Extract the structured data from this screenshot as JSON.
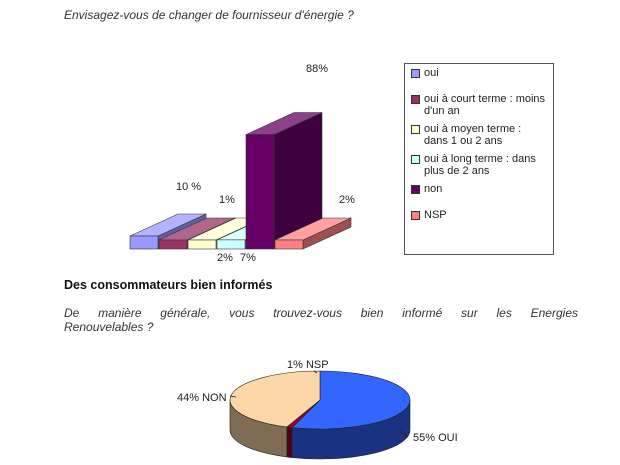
{
  "question1": "Envisagez-vous de changer de fournisseur d'énergie ?",
  "section_title": "Des consommateurs bien informés",
  "question2_line1": "De manière générale, vous trouvez-vous bien informé sur les Energies",
  "question2_line2": "Renouvelables ?",
  "chart_data": [
    {
      "type": "bar",
      "title": "",
      "categories": [
        "oui",
        "oui à court terme : moins d'un an",
        "oui à moyen terme : dans 1 ou 2 ans",
        "oui à long terme : dans plus de 2 ans",
        "non",
        "NSP"
      ],
      "values": [
        10,
        1,
        2,
        7,
        88,
        2
      ],
      "value_labels": [
        "10 %",
        "1%",
        "2%",
        "7%",
        "88%",
        "2%"
      ],
      "colors": [
        "#9999ff",
        "#993366",
        "#ffffcc",
        "#ccffff",
        "#660066",
        "#ff8080"
      ],
      "legend": [
        {
          "label": "oui",
          "color": "#9999ff"
        },
        {
          "label": "oui à court terme : moins d'un an",
          "color": "#993366"
        },
        {
          "label": "oui à moyen terme : dans 1 ou 2 ans",
          "color": "#ffffcc"
        },
        {
          "label": "oui à long terme : dans plus de 2 ans",
          "color": "#ccffff"
        },
        {
          "label": "non",
          "color": "#660066"
        },
        {
          "label": "NSP",
          "color": "#ff8080"
        }
      ],
      "legend_placement": "right",
      "ylim": [
        0,
        100
      ],
      "grid": false
    },
    {
      "type": "pie",
      "labels": [
        "OUI",
        "NSP",
        "NON"
      ],
      "values": [
        55,
        1,
        44
      ],
      "value_labels": [
        "55% OUI",
        "1% NSP",
        "44% NON"
      ],
      "colors": [
        "#3366ff",
        "#990033",
        "#fdd7a8"
      ]
    }
  ]
}
